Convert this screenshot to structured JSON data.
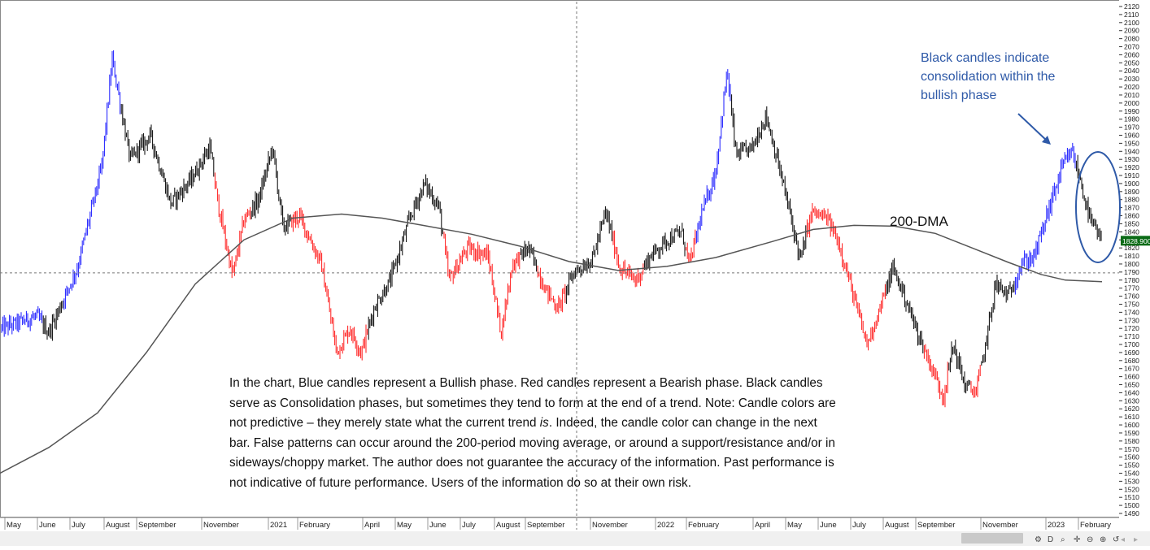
{
  "chart_data": {
    "type": "candlestick",
    "y_axis": {
      "min": 1490,
      "max": 2120,
      "step": 10,
      "position": "right",
      "current_price_label": "1828.900",
      "current_price": 1828.9
    },
    "x_axis": {
      "ticks": [
        "May",
        "June",
        "July",
        "August",
        "September",
        "November",
        "2021",
        "February",
        "April",
        "May",
        "June",
        "July",
        "August",
        "September",
        "November",
        "2022",
        "February",
        "April",
        "May",
        "June",
        "July",
        "August",
        "September",
        "November",
        "2023",
        "February"
      ]
    },
    "crosshair_price": 1789,
    "legend": {
      "bullish": "blue",
      "bearish": "red",
      "consolidation": "black"
    },
    "series": [
      {
        "name": "200-DMA",
        "kind": "moving-average",
        "points": [
          [
            0,
            1540
          ],
          [
            60,
            1572
          ],
          [
            120,
            1615
          ],
          [
            180,
            1690
          ],
          [
            240,
            1775
          ],
          [
            300,
            1830
          ],
          [
            360,
            1857
          ],
          [
            420,
            1862
          ],
          [
            470,
            1857
          ],
          [
            520,
            1848
          ],
          [
            580,
            1837
          ],
          [
            640,
            1822
          ],
          [
            700,
            1803
          ],
          [
            760,
            1792
          ],
          [
            820,
            1797
          ],
          [
            880,
            1808
          ],
          [
            950,
            1828
          ],
          [
            1000,
            1843
          ],
          [
            1050,
            1848
          ],
          [
            1100,
            1847
          ],
          [
            1150,
            1838
          ],
          [
            1200,
            1818
          ],
          [
            1240,
            1802
          ],
          [
            1280,
            1787
          ],
          [
            1310,
            1780
          ],
          [
            1355,
            1778
          ]
        ]
      }
    ],
    "price_path": [
      {
        "x": 2,
        "price": 1720,
        "phase": "bullish"
      },
      {
        "x": 45,
        "price": 1735,
        "phase": "bullish"
      },
      {
        "x": 60,
        "price": 1715,
        "phase": "consolidation"
      },
      {
        "x": 95,
        "price": 1795,
        "phase": "bullish"
      },
      {
        "x": 125,
        "price": 1920,
        "phase": "bullish"
      },
      {
        "x": 138,
        "price": 2055,
        "phase": "bullish"
      },
      {
        "x": 160,
        "price": 1930,
        "phase": "consolidation"
      },
      {
        "x": 185,
        "price": 1960,
        "phase": "consolidation"
      },
      {
        "x": 210,
        "price": 1875,
        "phase": "consolidation"
      },
      {
        "x": 235,
        "price": 1905,
        "phase": "consolidation"
      },
      {
        "x": 258,
        "price": 1945,
        "phase": "consolidation"
      },
      {
        "x": 268,
        "price": 1875,
        "phase": "bearish"
      },
      {
        "x": 286,
        "price": 1785,
        "phase": "bearish"
      },
      {
        "x": 300,
        "price": 1855,
        "phase": "bearish"
      },
      {
        "x": 318,
        "price": 1880,
        "phase": "consolidation"
      },
      {
        "x": 335,
        "price": 1945,
        "phase": "consolidation"
      },
      {
        "x": 348,
        "price": 1845,
        "phase": "consolidation"
      },
      {
        "x": 368,
        "price": 1860,
        "phase": "bearish"
      },
      {
        "x": 395,
        "price": 1800,
        "phase": "bearish"
      },
      {
        "x": 414,
        "price": 1690,
        "phase": "bearish"
      },
      {
        "x": 430,
        "price": 1720,
        "phase": "bearish"
      },
      {
        "x": 444,
        "price": 1690,
        "phase": "bearish"
      },
      {
        "x": 460,
        "price": 1745,
        "phase": "consolidation"
      },
      {
        "x": 480,
        "price": 1780,
        "phase": "consolidation"
      },
      {
        "x": 505,
        "price": 1860,
        "phase": "consolidation"
      },
      {
        "x": 522,
        "price": 1900,
        "phase": "consolidation"
      },
      {
        "x": 540,
        "price": 1870,
        "phase": "consolidation"
      },
      {
        "x": 552,
        "price": 1780,
        "phase": "bearish"
      },
      {
        "x": 575,
        "price": 1820,
        "phase": "bearish"
      },
      {
        "x": 600,
        "price": 1810,
        "phase": "bearish"
      },
      {
        "x": 616,
        "price": 1715,
        "phase": "bearish"
      },
      {
        "x": 630,
        "price": 1800,
        "phase": "bearish"
      },
      {
        "x": 650,
        "price": 1820,
        "phase": "consolidation"
      },
      {
        "x": 670,
        "price": 1770,
        "phase": "bearish"
      },
      {
        "x": 686,
        "price": 1745,
        "phase": "bearish"
      },
      {
        "x": 706,
        "price": 1790,
        "phase": "consolidation"
      },
      {
        "x": 728,
        "price": 1805,
        "phase": "consolidation"
      },
      {
        "x": 745,
        "price": 1865,
        "phase": "consolidation"
      },
      {
        "x": 762,
        "price": 1795,
        "phase": "bearish"
      },
      {
        "x": 782,
        "price": 1780,
        "phase": "bearish"
      },
      {
        "x": 800,
        "price": 1810,
        "phase": "consolidation"
      },
      {
        "x": 820,
        "price": 1830,
        "phase": "consolidation"
      },
      {
        "x": 838,
        "price": 1840,
        "phase": "consolidation"
      },
      {
        "x": 848,
        "price": 1800,
        "phase": "bearish"
      },
      {
        "x": 862,
        "price": 1860,
        "phase": "bullish"
      },
      {
        "x": 880,
        "price": 1915,
        "phase": "bullish"
      },
      {
        "x": 894,
        "price": 2040,
        "phase": "bullish"
      },
      {
        "x": 905,
        "price": 1935,
        "phase": "consolidation"
      },
      {
        "x": 925,
        "price": 1945,
        "phase": "consolidation"
      },
      {
        "x": 942,
        "price": 1985,
        "phase": "consolidation"
      },
      {
        "x": 958,
        "price": 1920,
        "phase": "consolidation"
      },
      {
        "x": 972,
        "price": 1860,
        "phase": "consolidation"
      },
      {
        "x": 984,
        "price": 1805,
        "phase": "consolidation"
      },
      {
        "x": 998,
        "price": 1865,
        "phase": "bearish"
      },
      {
        "x": 1018,
        "price": 1855,
        "phase": "bearish"
      },
      {
        "x": 1032,
        "price": 1825,
        "phase": "bearish"
      },
      {
        "x": 1048,
        "price": 1765,
        "phase": "bearish"
      },
      {
        "x": 1066,
        "price": 1700,
        "phase": "bearish"
      },
      {
        "x": 1082,
        "price": 1745,
        "phase": "bearish"
      },
      {
        "x": 1098,
        "price": 1795,
        "phase": "consolidation"
      },
      {
        "x": 1112,
        "price": 1760,
        "phase": "consolidation"
      },
      {
        "x": 1128,
        "price": 1715,
        "phase": "consolidation"
      },
      {
        "x": 1142,
        "price": 1680,
        "phase": "bearish"
      },
      {
        "x": 1160,
        "price": 1635,
        "phase": "bearish"
      },
      {
        "x": 1172,
        "price": 1700,
        "phase": "consolidation"
      },
      {
        "x": 1186,
        "price": 1650,
        "phase": "consolidation"
      },
      {
        "x": 1200,
        "price": 1640,
        "phase": "bearish"
      },
      {
        "x": 1212,
        "price": 1700,
        "phase": "consolidation"
      },
      {
        "x": 1224,
        "price": 1775,
        "phase": "consolidation"
      },
      {
        "x": 1240,
        "price": 1760,
        "phase": "consolidation"
      },
      {
        "x": 1256,
        "price": 1800,
        "phase": "bullish"
      },
      {
        "x": 1272,
        "price": 1810,
        "phase": "bullish"
      },
      {
        "x": 1290,
        "price": 1870,
        "phase": "bullish"
      },
      {
        "x": 1306,
        "price": 1920,
        "phase": "bullish"
      },
      {
        "x": 1318,
        "price": 1940,
        "phase": "bullish"
      },
      {
        "x": 1328,
        "price": 1905,
        "phase": "consolidation"
      },
      {
        "x": 1340,
        "price": 1855,
        "phase": "consolidation"
      },
      {
        "x": 1354,
        "price": 1829,
        "phase": "consolidation"
      }
    ]
  },
  "annotations": {
    "dma_label": "200-DMA",
    "callout": "Black candles indicate consolidation within the bullish phase",
    "disclaimer_parts": [
      "In the chart, Blue candles represent a Bullish phase. Red candles represent a Bearish phase. Black candles serve as Consolidation phases, but sometimes they tend to form at the end of a trend. Note: Candle colors are not predictive – they merely state what the current trend ",
      "is",
      ". Indeed, the candle color can change in the next bar. False patterns can occur around the 200-period moving average, or around a support/resistance and/or in sideways/choppy market. The author does not guarantee the accuracy of the information. Past performance is not indicative of future performance. Users of the information do so at their own risk."
    ]
  },
  "colors": {
    "bullish": "#1a1aff",
    "bearish": "#ff1a1a",
    "consolidation": "#000000",
    "dma": "#555555",
    "callout": "#2f5aa8"
  },
  "toolbar": {
    "icons": [
      "settings-icon",
      "d-button",
      "search-icon",
      "move-icon",
      "zoom-out-icon",
      "zoom-in-icon",
      "reset-icon"
    ],
    "d_label": "D"
  }
}
